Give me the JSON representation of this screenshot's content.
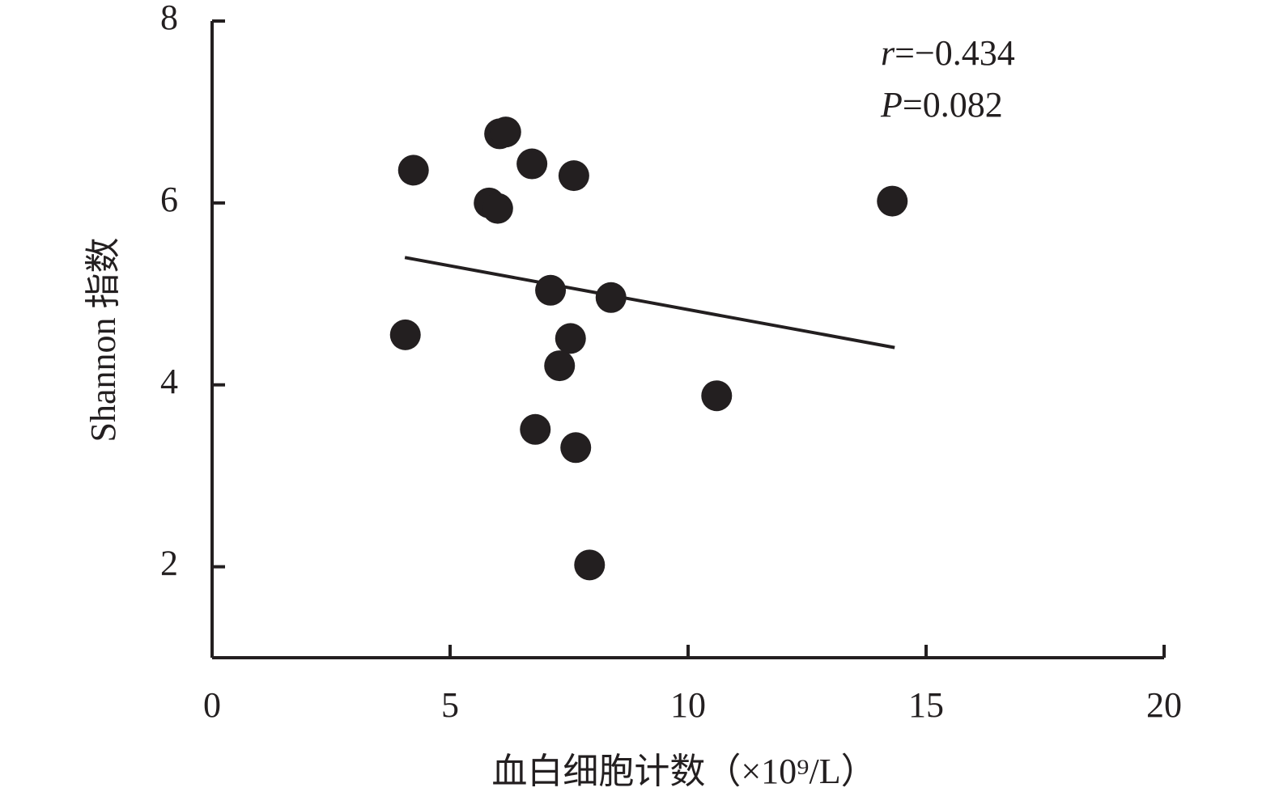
{
  "chart_data": {
    "type": "scatter",
    "x_label": "血白细胞计数（×10⁹/L）",
    "y_label": "Shannon 指数",
    "annotations": [
      [
        "r",
        "=−0.434"
      ],
      [
        "P",
        "=0.082"
      ]
    ],
    "color": "#231f20",
    "x": [
      4.23,
      6.04,
      6.17,
      6.72,
      7.6,
      5.82,
      6.0,
      14.29,
      7.11,
      8.38,
      4.06,
      7.53,
      7.3,
      10.6,
      6.79,
      7.64,
      7.93
    ],
    "y": [
      6.36,
      6.76,
      6.78,
      6.43,
      6.3,
      6.0,
      5.94,
      6.02,
      5.04,
      4.96,
      4.55,
      4.51,
      4.21,
      3.88,
      3.51,
      3.31,
      2.02
    ],
    "trend": {
      "x": [
        4.05,
        14.34
      ],
      "y": [
        5.4,
        4.41
      ]
    },
    "xlim": [
      0,
      20
    ],
    "xticks": [
      0,
      5,
      10,
      15,
      20
    ],
    "ylim": [
      1,
      8
    ],
    "yticks": [
      2,
      4,
      6,
      8
    ]
  }
}
